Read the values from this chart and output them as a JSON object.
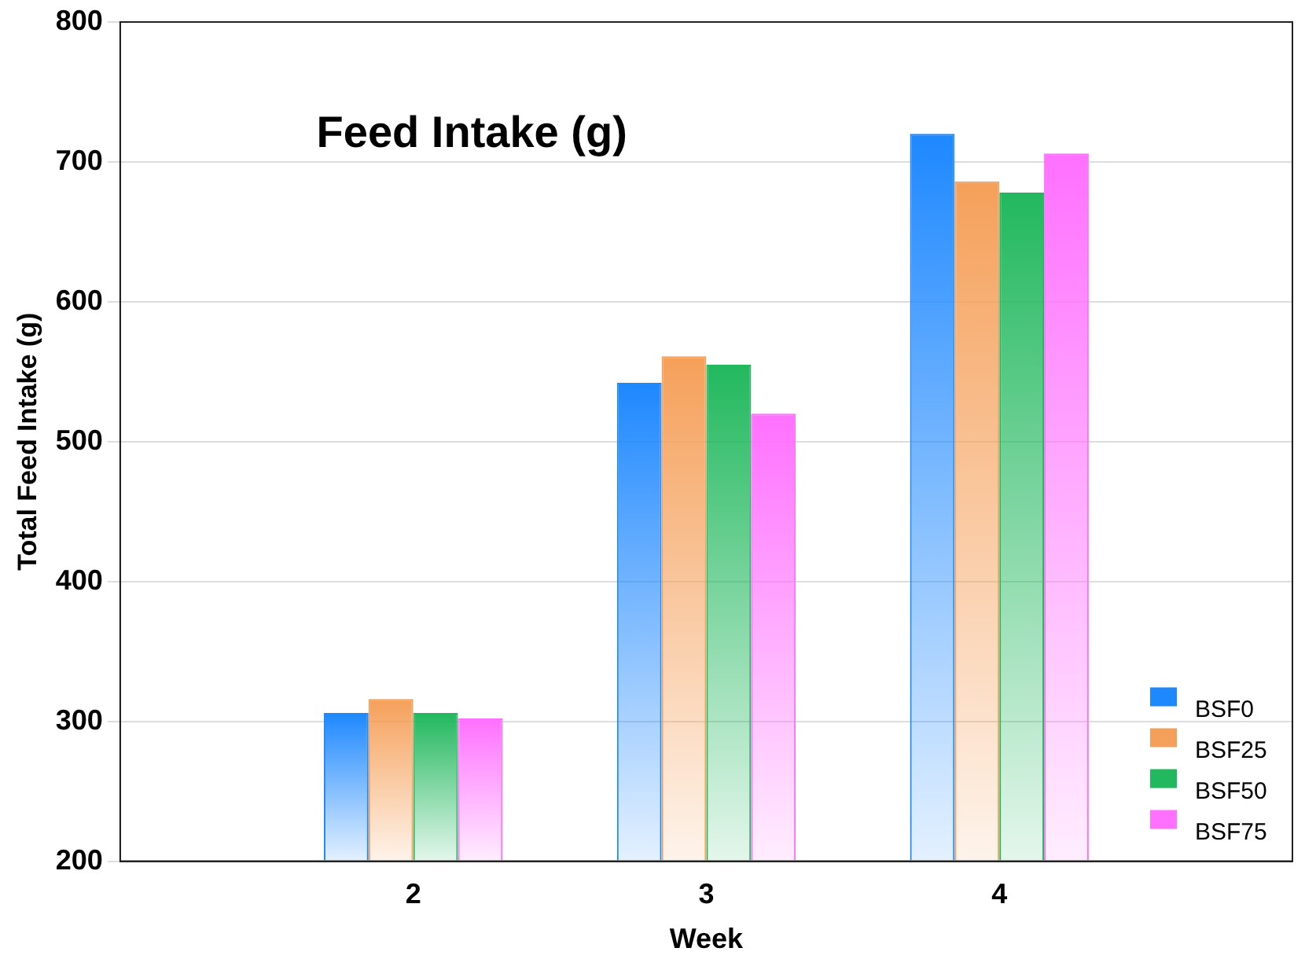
{
  "chart_data": {
    "type": "bar",
    "title": "Feed Intake (g)",
    "xlabel": "Week",
    "ylabel": "Total Feed Intake (g)",
    "categories": [
      null,
      "2",
      "3",
      "4",
      null
    ],
    "series": [
      {
        "name": "BSF0",
        "color": "#1e88ff",
        "values": [
          null,
          306,
          542,
          720,
          null
        ]
      },
      {
        "name": "BSF25",
        "color": "#f5a05a",
        "values": [
          null,
          316,
          561,
          686,
          null
        ]
      },
      {
        "name": "BSF50",
        "color": "#22b85e",
        "values": [
          null,
          306,
          555,
          678,
          null
        ]
      },
      {
        "name": "BSF75",
        "color": "#ff70ff",
        "values": [
          null,
          302,
          520,
          706,
          null
        ]
      }
    ],
    "ylim": [
      200,
      800
    ],
    "yticks": [
      200,
      300,
      400,
      500,
      600,
      700,
      800
    ],
    "grid": "y",
    "legend": "bottom right"
  }
}
